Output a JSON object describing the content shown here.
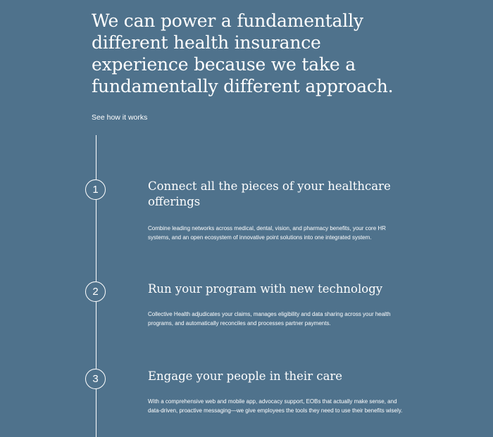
{
  "hero": {
    "title": "We can power a fundamentally different health insurance experience because we take a fundamentally different approach.",
    "link_label": "See how it works"
  },
  "steps": [
    {
      "number": "1",
      "title": "Connect all the pieces of your healthcare offerings",
      "description": "Combine leading networks across medical, dental, vision, and pharmacy benefits, your core HR systems, and an open ecosystem of innovative point solutions into one integrated system."
    },
    {
      "number": "2",
      "title": "Run your program with new technology",
      "description": "Collective Health adjudicates your claims, manages eligibility and data sharing across your health programs, and automatically reconciles and processes partner payments."
    },
    {
      "number": "3",
      "title": "Engage your people in their care",
      "description": "With a comprehensive web and mobile app, advocacy support, EOBs that actually make sense, and data-driven, proactive messaging—we give employees the tools they need to use their benefits wisely."
    }
  ],
  "colors": {
    "background": "#4f728c",
    "text": "#ffffff"
  }
}
